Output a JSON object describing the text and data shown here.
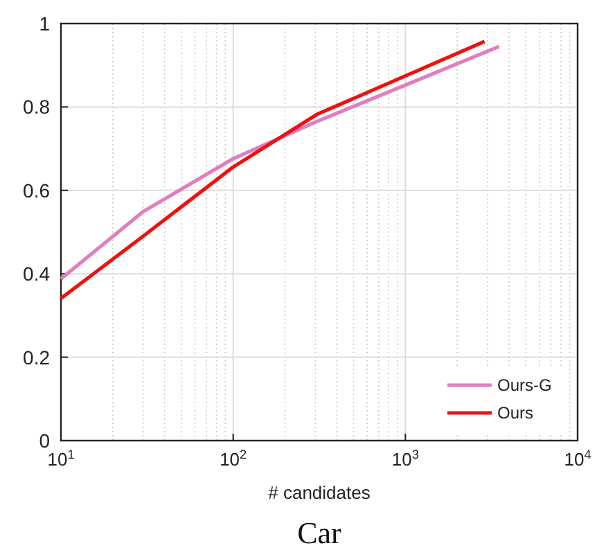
{
  "chart_data": {
    "type": "line",
    "title": "Car",
    "xlabel": "# candidates",
    "log": "x",
    "xlim": [
      10,
      10000
    ],
    "ylim": [
      0,
      1
    ],
    "xticks": [
      {
        "value": 10,
        "label": "10$^{1}$"
      },
      {
        "value": 100,
        "label": "10$^{2}$"
      },
      {
        "value": 1000,
        "label": "10$^{3}$"
      },
      {
        "value": 10000,
        "label": "10$^{4}$"
      }
    ],
    "yticks": [
      0,
      0.2,
      0.4,
      0.6,
      0.8,
      1
    ],
    "grid": true,
    "legend": "bottom right",
    "series": [
      {
        "name": "Ours-G",
        "color": "#e07fbf",
        "x": [
          10,
          30,
          100,
          306,
          3500
        ],
        "values": [
          0.388,
          0.549,
          0.676,
          0.765,
          0.945
        ]
      },
      {
        "name": "Ours",
        "color": "#ee1111",
        "x": [
          10,
          30,
          100,
          306,
          2880
        ],
        "values": [
          0.341,
          0.49,
          0.656,
          0.782,
          0.957
        ]
      }
    ]
  }
}
